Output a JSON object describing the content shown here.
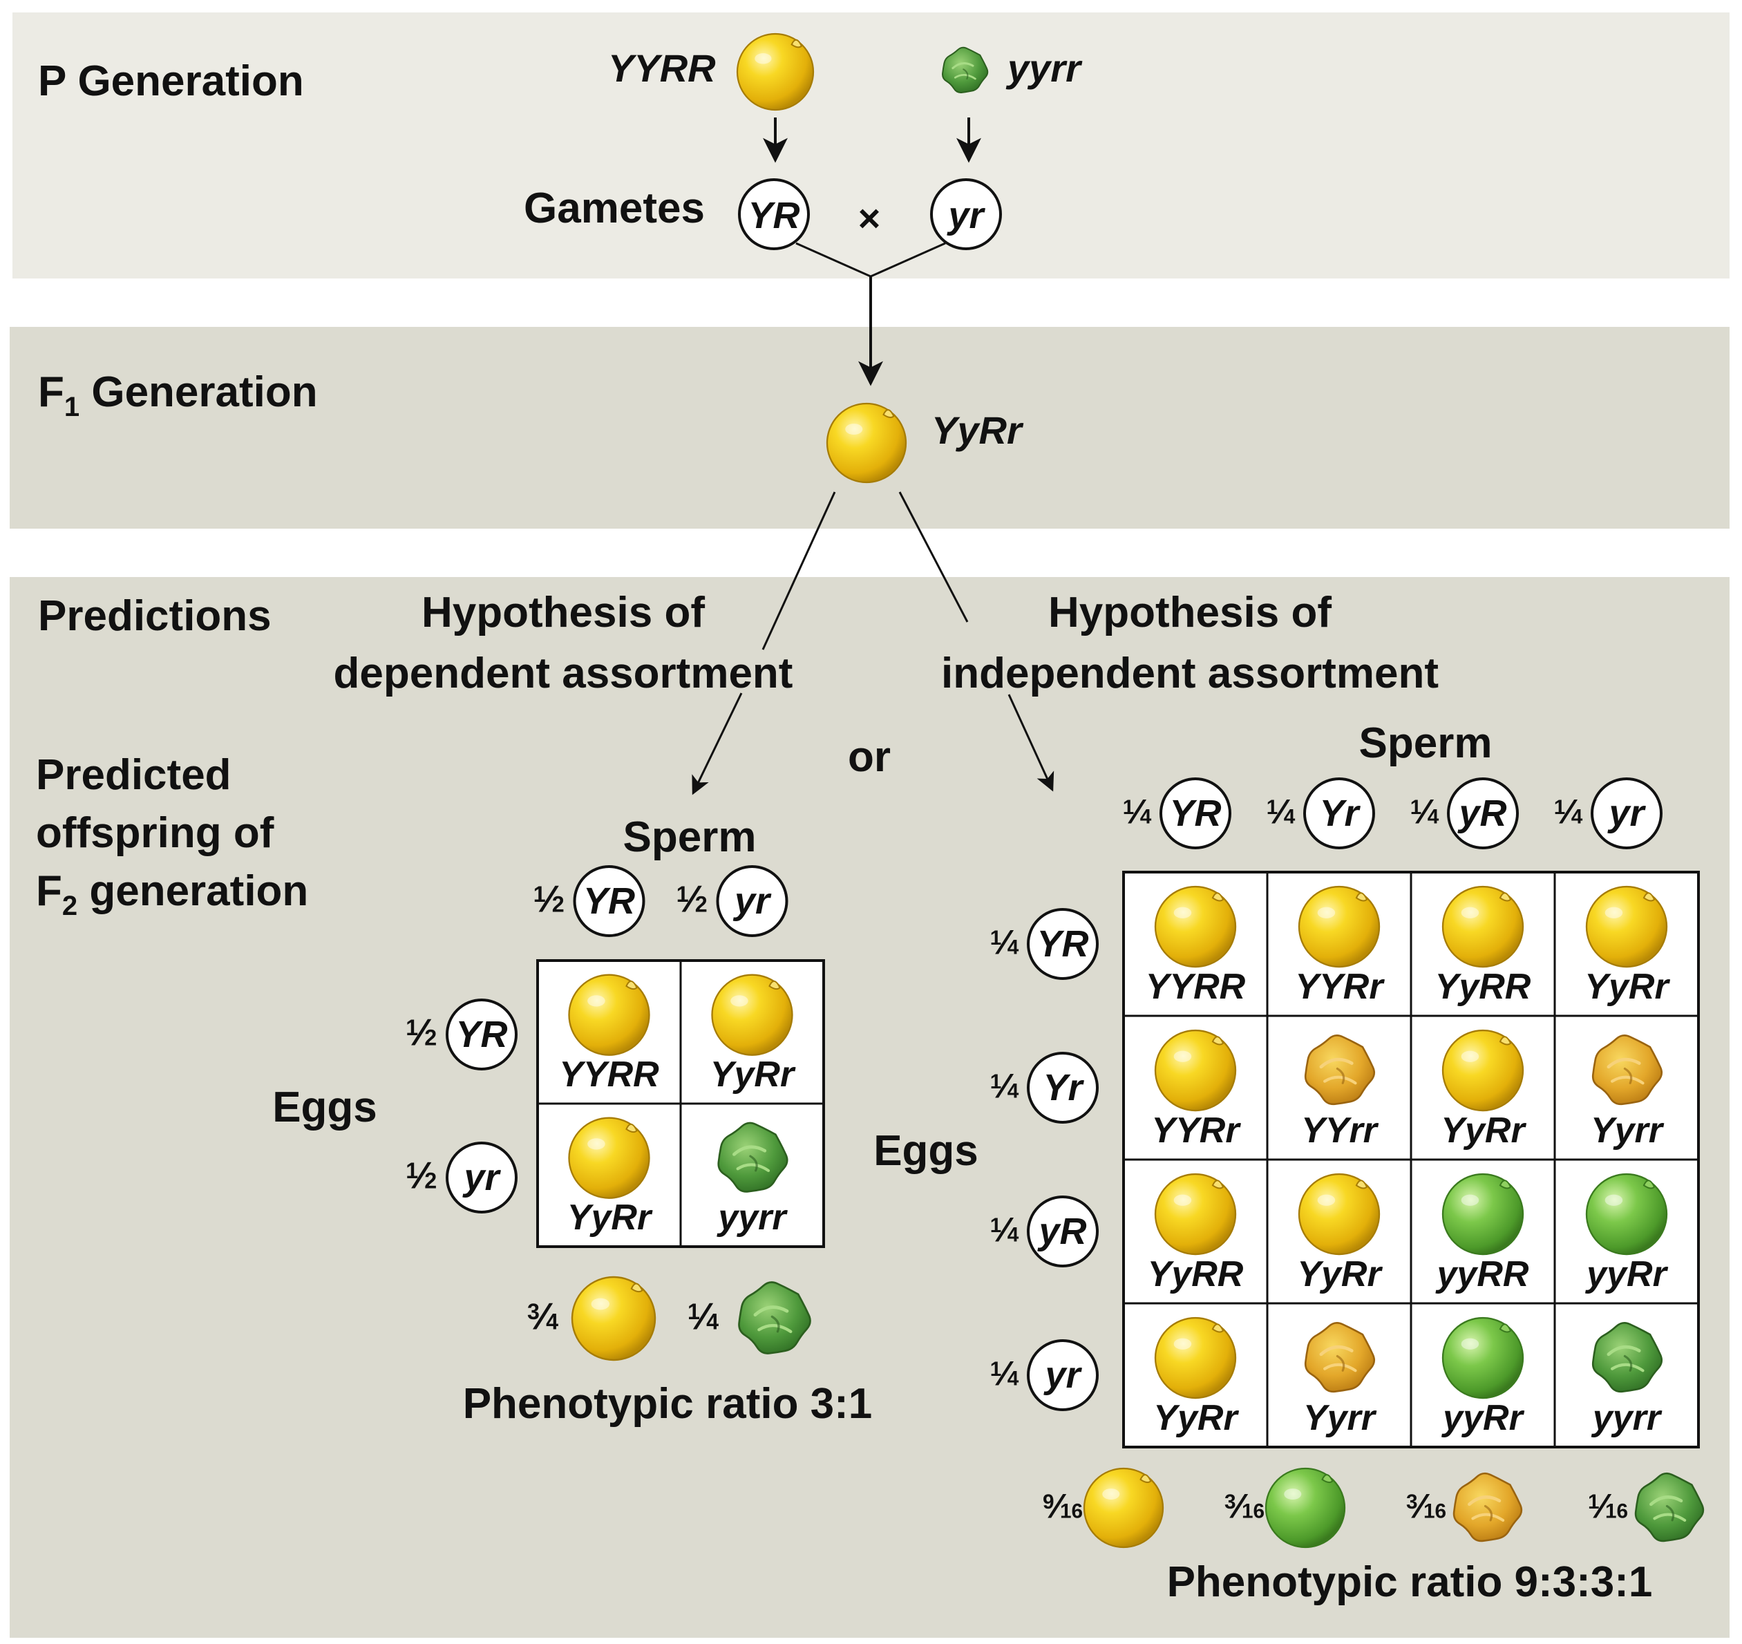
{
  "colors": {
    "band_light": "#ecebe4",
    "band_dark": "#dcdbd0",
    "yellow_pea": "#f2c912",
    "green_pea": "#5fb33a",
    "wrinkled_yellow": "#e2a62a",
    "wrinkled_green": "#4f9a3c"
  },
  "bands": {
    "p": "P Generation",
    "f1_prefix": "F",
    "f1_sub": "1",
    "f1_suffix": " Generation",
    "predictions": "Predictions",
    "offspring_line1": "Predicted",
    "offspring_line2": "offspring of",
    "offspring_line3_prefix": "F",
    "offspring_line3_sub": "2",
    "offspring_line3_suffix": " generation"
  },
  "p_generation": {
    "parent1_genotype": "YYRR",
    "parent2_genotype": "yyrr",
    "gametes_label": "Gametes",
    "gamete1": "YR",
    "gamete2": "yr",
    "cross_symbol": "×"
  },
  "f1": {
    "genotype": "YyRr"
  },
  "hypotheses": {
    "dependent_line1": "Hypothesis of",
    "dependent_line2": "dependent assortment",
    "or": "or",
    "independent_line1": "Hypothesis of",
    "independent_line2": "independent assortment"
  },
  "dependent": {
    "sperm_label": "Sperm",
    "eggs_label": "Eggs",
    "sperm": [
      {
        "num": "1",
        "den": "2",
        "allele": "YR"
      },
      {
        "num": "1",
        "den": "2",
        "allele": "yr"
      }
    ],
    "eggs": [
      {
        "num": "1",
        "den": "2",
        "allele": "YR"
      },
      {
        "num": "1",
        "den": "2",
        "allele": "yr"
      }
    ],
    "cells": [
      [
        {
          "genotype": "YYRR",
          "pea": "round-yellow"
        },
        {
          "genotype": "YyRr",
          "pea": "round-yellow"
        }
      ],
      [
        {
          "genotype": "YyRr",
          "pea": "round-yellow"
        },
        {
          "genotype": "yyrr",
          "pea": "wrinkled-green"
        }
      ]
    ],
    "phenotypes": [
      {
        "num": "3",
        "den": "4",
        "pea": "round-yellow"
      },
      {
        "num": "1",
        "den": "4",
        "pea": "wrinkled-green"
      }
    ],
    "ratio_label": "Phenotypic ratio 3:1"
  },
  "independent": {
    "sperm_label": "Sperm",
    "eggs_label": "Eggs",
    "sperm": [
      {
        "num": "1",
        "den": "4",
        "allele": "YR"
      },
      {
        "num": "1",
        "den": "4",
        "allele": "Yr"
      },
      {
        "num": "1",
        "den": "4",
        "allele": "yR"
      },
      {
        "num": "1",
        "den": "4",
        "allele": "yr"
      }
    ],
    "eggs": [
      {
        "num": "1",
        "den": "4",
        "allele": "YR"
      },
      {
        "num": "1",
        "den": "4",
        "allele": "Yr"
      },
      {
        "num": "1",
        "den": "4",
        "allele": "yR"
      },
      {
        "num": "1",
        "den": "4",
        "allele": "yr"
      }
    ],
    "cells": [
      [
        {
          "genotype": "YYRR",
          "pea": "round-yellow"
        },
        {
          "genotype": "YYRr",
          "pea": "round-yellow"
        },
        {
          "genotype": "YyRR",
          "pea": "round-yellow"
        },
        {
          "genotype": "YyRr",
          "pea": "round-yellow"
        }
      ],
      [
        {
          "genotype": "YYRr",
          "pea": "round-yellow"
        },
        {
          "genotype": "YYrr",
          "pea": "wrinkled-yellow"
        },
        {
          "genotype": "YyRr",
          "pea": "round-yellow"
        },
        {
          "genotype": "Yyrr",
          "pea": "wrinkled-yellow"
        }
      ],
      [
        {
          "genotype": "YyRR",
          "pea": "round-yellow"
        },
        {
          "genotype": "YyRr",
          "pea": "round-yellow"
        },
        {
          "genotype": "yyRR",
          "pea": "round-green"
        },
        {
          "genotype": "yyRr",
          "pea": "round-green"
        }
      ],
      [
        {
          "genotype": "YyRr",
          "pea": "round-yellow"
        },
        {
          "genotype": "Yyrr",
          "pea": "wrinkled-yellow"
        },
        {
          "genotype": "yyRr",
          "pea": "round-green"
        },
        {
          "genotype": "yyrr",
          "pea": "wrinkled-green"
        }
      ]
    ],
    "phenotypes": [
      {
        "num": "9",
        "den": "16",
        "pea": "round-yellow"
      },
      {
        "num": "3",
        "den": "16",
        "pea": "round-green"
      },
      {
        "num": "3",
        "den": "16",
        "pea": "wrinkled-yellow"
      },
      {
        "num": "1",
        "den": "16",
        "pea": "wrinkled-green"
      }
    ],
    "ratio_label": "Phenotypic ratio 9:3:3:1"
  }
}
